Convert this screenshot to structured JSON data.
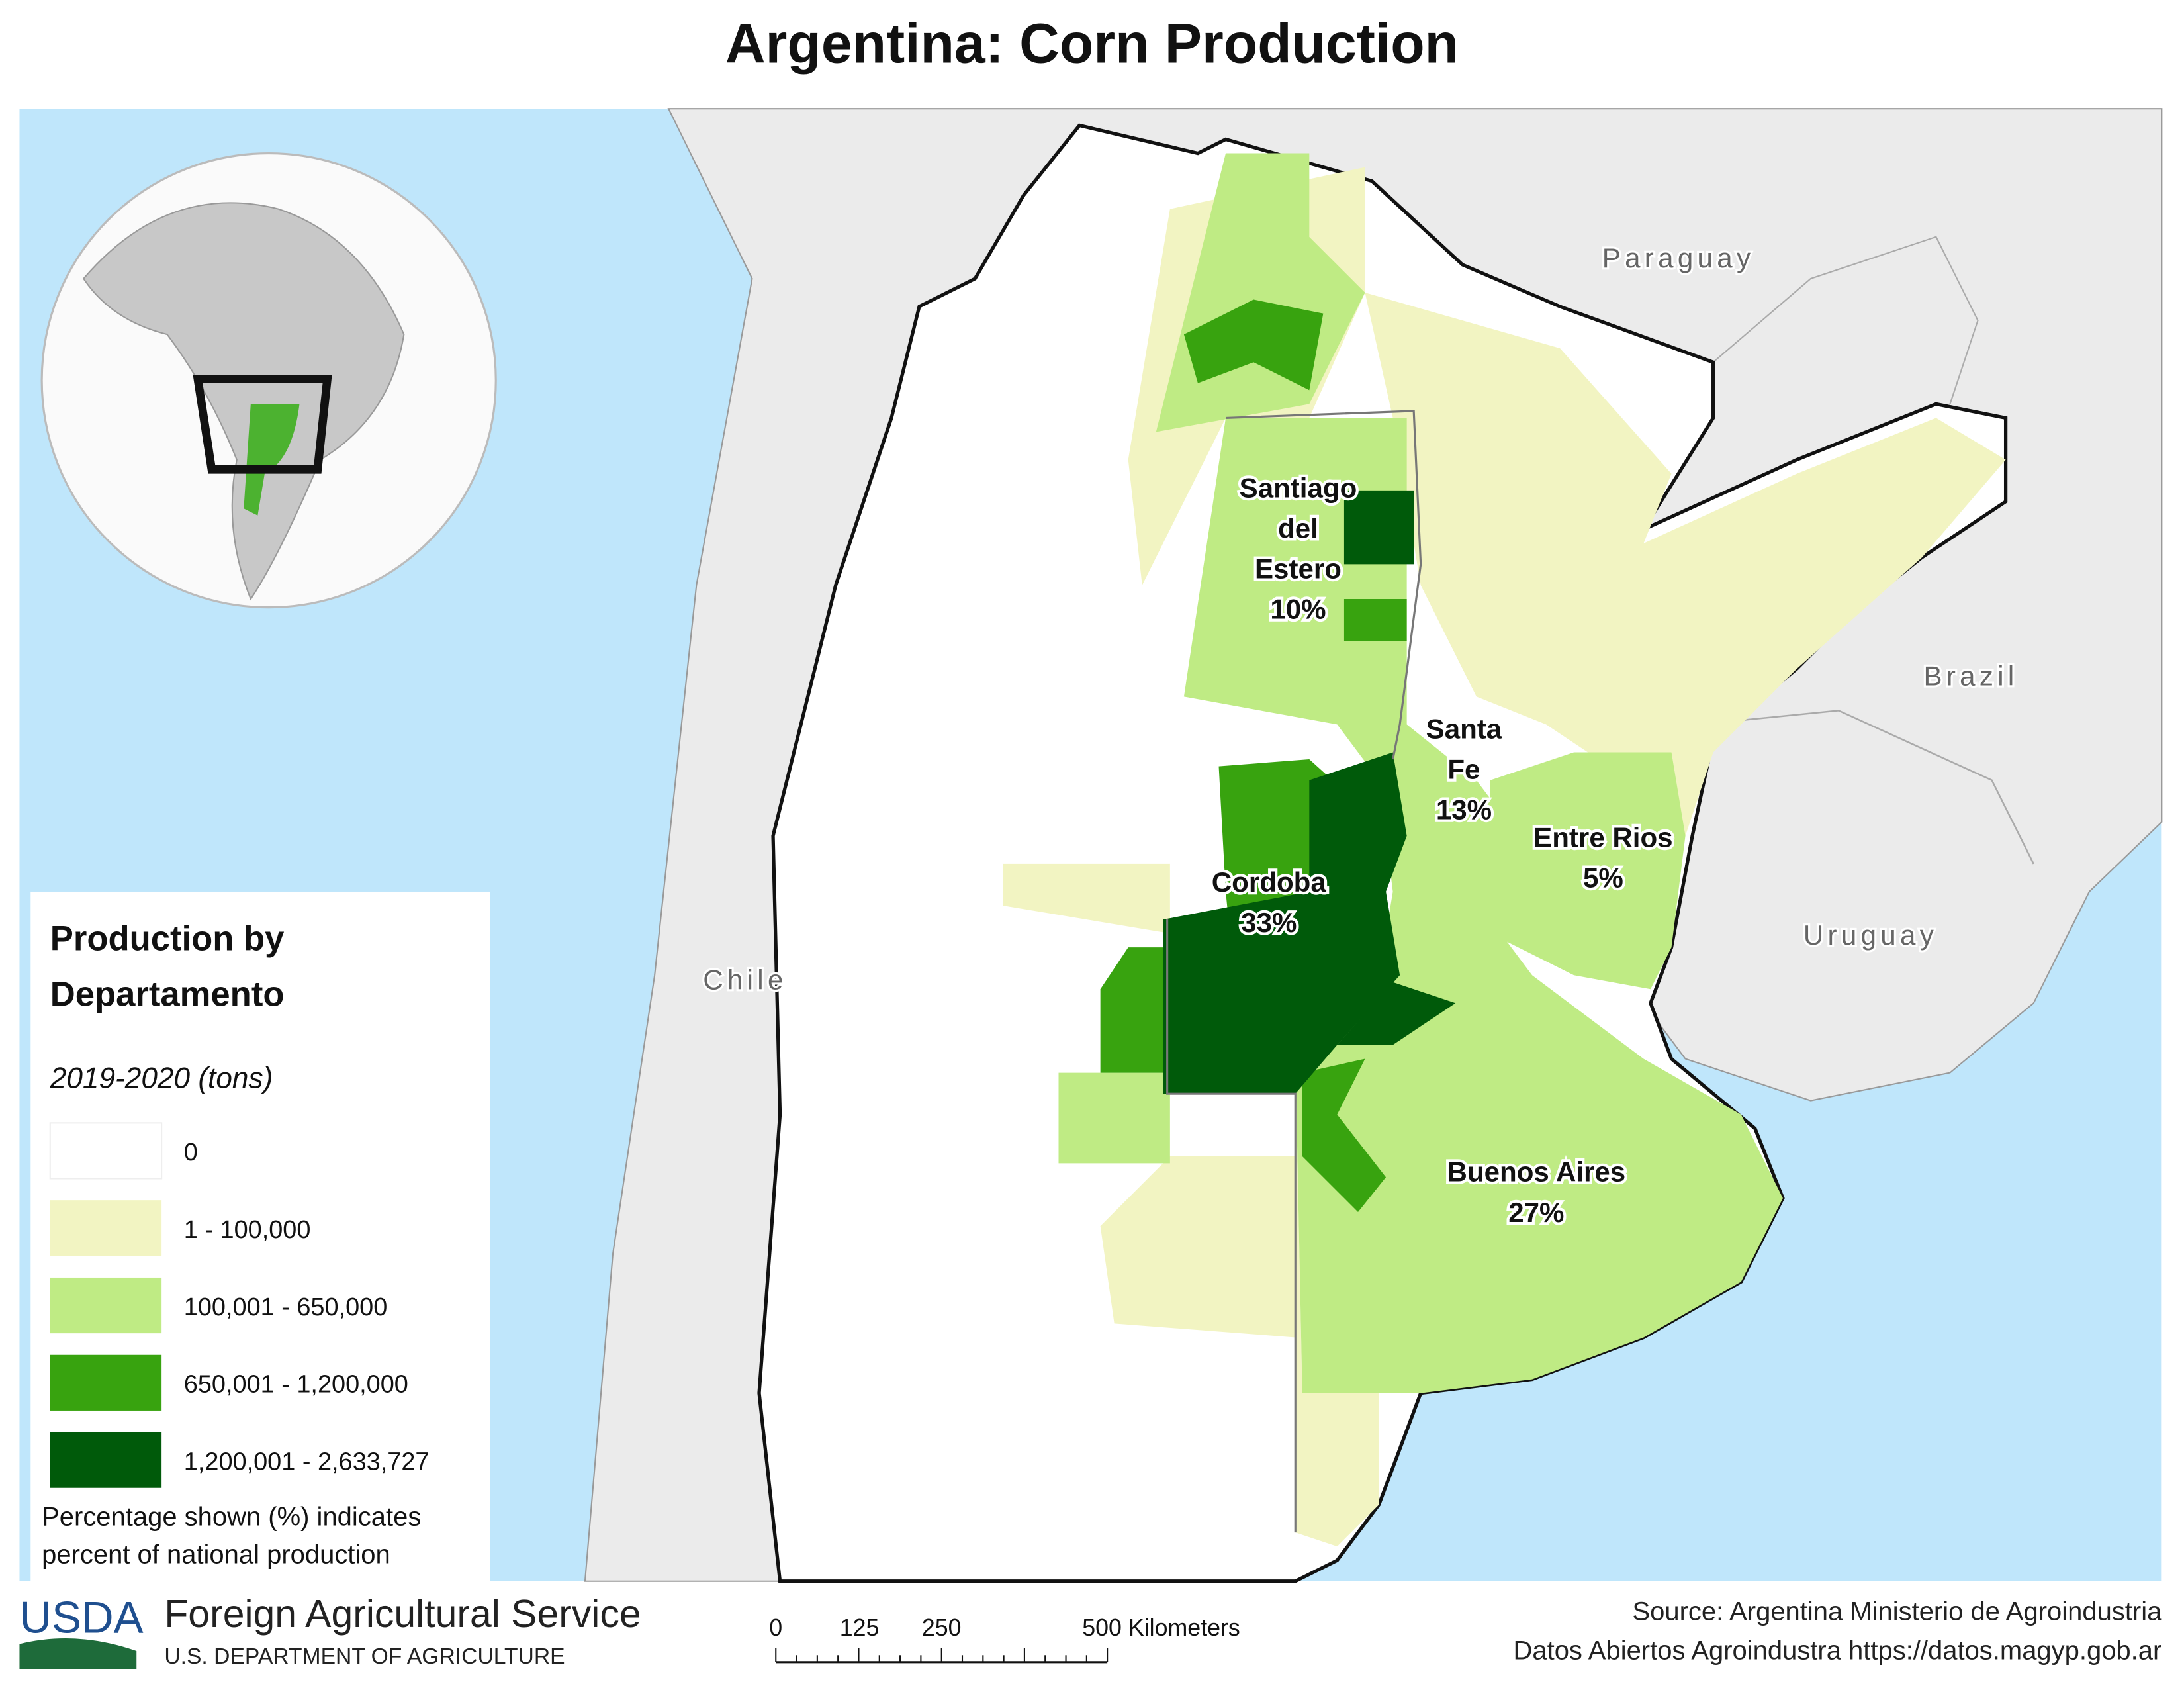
{
  "title": "Argentina: Corn Production",
  "countries": [
    "Paraguay",
    "Brazil",
    "Uruguay",
    "Chile"
  ],
  "provinces": [
    {
      "lines": [
        "Santiago",
        "del",
        "Estero"
      ],
      "share": "10%"
    },
    {
      "lines": [
        "Santa",
        "Fe"
      ],
      "share": "13%"
    },
    {
      "lines": [
        "Entre Rios"
      ],
      "share": "5%"
    },
    {
      "lines": [
        "Cordoba"
      ],
      "share": "33%"
    },
    {
      "lines": [
        "Buenos Aires"
      ],
      "share": "27%"
    }
  ],
  "legend": {
    "title": "Production by Departamento",
    "subtitle": "2019-2020 (tons)",
    "classes": [
      {
        "label": "0",
        "color": "#ffffff"
      },
      {
        "label": "1 - 100,000",
        "color": "#f2f4c2"
      },
      {
        "label": "100,001 - 650,000",
        "color": "#bfeb84"
      },
      {
        "label": "650,001 - 1,200,000",
        "color": "#38a30f"
      },
      {
        "label": "1,200,001 - 2,633,727",
        "color": "#005a0a"
      }
    ],
    "note": [
      "Percentage shown (%) indicates",
      "percent of national production"
    ]
  },
  "scale_bar": [
    "0",
    "125",
    "250",
    "500 Kilometers"
  ],
  "footer": {
    "agency": "Foreign Agricultural Service",
    "department": "U.S. DEPARTMENT OF AGRICULTURE",
    "logo": "USDA",
    "source": [
      "Source: Argentina Ministerio de Agroindustria",
      "Datos Abiertos Agroindustra https://datos.magyp.gob.ar"
    ]
  }
}
